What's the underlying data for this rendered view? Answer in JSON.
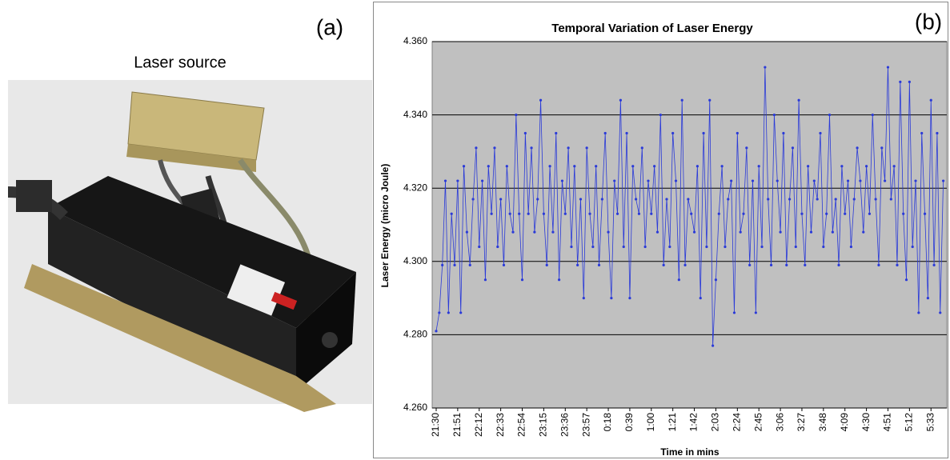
{
  "panel_a": {
    "label": "(a)",
    "caption": "Laser source"
  },
  "chart_data": {
    "type": "line",
    "panel_label": "(b)",
    "title": "Temporal Variation of Laser Energy",
    "x_label": "Time in mins",
    "y_label": "Laser Energy (micro Joule)",
    "categories": [
      "21:30",
      null,
      null,
      null,
      null,
      null,
      null,
      "21:51",
      null,
      null,
      null,
      null,
      null,
      null,
      "22:12",
      null,
      null,
      null,
      null,
      null,
      null,
      "22:33",
      null,
      null,
      null,
      null,
      null,
      null,
      "22:54",
      null,
      null,
      null,
      null,
      null,
      null,
      "23:15",
      null,
      null,
      null,
      null,
      null,
      null,
      "23:36",
      null,
      null,
      null,
      null,
      null,
      null,
      "23:57",
      null,
      null,
      null,
      null,
      null,
      null,
      "0:18",
      null,
      null,
      null,
      null,
      null,
      null,
      "0:39",
      null,
      null,
      null,
      null,
      null,
      null,
      "1:00",
      null,
      null,
      null,
      null,
      null,
      null,
      "1:21",
      null,
      null,
      null,
      null,
      null,
      null,
      "1:42",
      null,
      null,
      null,
      null,
      null,
      null,
      "2:03",
      null,
      null,
      null,
      null,
      null,
      null,
      "2:24",
      null,
      null,
      null,
      null,
      null,
      null,
      "2:45",
      null,
      null,
      null,
      null,
      null,
      null,
      "3:06",
      null,
      null,
      null,
      null,
      null,
      null,
      "3:27",
      null,
      null,
      null,
      null,
      null,
      null,
      "3:48",
      null,
      null,
      null,
      null,
      null,
      null,
      "4:09",
      null,
      null,
      null,
      null,
      null,
      null,
      "4:30",
      null,
      null,
      null,
      null,
      null,
      null,
      "4:51",
      null,
      null,
      null,
      null,
      null,
      null,
      "5:12",
      null,
      null,
      null,
      null,
      null,
      null,
      "5:33",
      null,
      null,
      null,
      null
    ],
    "series": [
      {
        "color": "#2a3ad8",
        "values": [
          4.281,
          4.286,
          4.299,
          4.322,
          4.286,
          4.313,
          4.299,
          4.322,
          4.286,
          4.326,
          4.308,
          4.299,
          4.317,
          4.331,
          4.304,
          4.322,
          4.295,
          4.326,
          4.313,
          4.331,
          4.304,
          4.317,
          4.299,
          4.326,
          4.313,
          4.308,
          4.34,
          4.313,
          4.295,
          4.335,
          4.313,
          4.331,
          4.308,
          4.317,
          4.344,
          4.313,
          4.299,
          4.326,
          4.308,
          4.335,
          4.295,
          4.322,
          4.313,
          4.331,
          4.304,
          4.326,
          4.299,
          4.317,
          4.29,
          4.331,
          4.313,
          4.304,
          4.326,
          4.299,
          4.317,
          4.335,
          4.308,
          4.29,
          4.322,
          4.313,
          4.344,
          4.304,
          4.335,
          4.29,
          4.326,
          4.317,
          4.313,
          4.331,
          4.304,
          4.322,
          4.313,
          4.326,
          4.308,
          4.34,
          4.299,
          4.317,
          4.304,
          4.335,
          4.322,
          4.295,
          4.344,
          4.299,
          4.317,
          4.313,
          4.308,
          4.326,
          4.29,
          4.335,
          4.304,
          4.344,
          4.277,
          4.295,
          4.313,
          4.326,
          4.304,
          4.317,
          4.322,
          4.286,
          4.335,
          4.308,
          4.313,
          4.331,
          4.299,
          4.322,
          4.286,
          4.326,
          4.304,
          4.353,
          4.317,
          4.299,
          4.34,
          4.322,
          4.308,
          4.335,
          4.299,
          4.317,
          4.331,
          4.304,
          4.344,
          4.313,
          4.299,
          4.326,
          4.308,
          4.322,
          4.317,
          4.335,
          4.304,
          4.313,
          4.34,
          4.308,
          4.317,
          4.299,
          4.326,
          4.313,
          4.322,
          4.304,
          4.317,
          4.331,
          4.322,
          4.308,
          4.326,
          4.313,
          4.34,
          4.317,
          4.299,
          4.331,
          4.322,
          4.353,
          4.317,
          4.326,
          4.299,
          4.349,
          4.313,
          4.295,
          4.349,
          4.304,
          4.322,
          4.286,
          4.335,
          4.313,
          4.29,
          4.344,
          4.299,
          4.335,
          4.286,
          4.322
        ]
      }
    ],
    "ylim": [
      4.26,
      4.36
    ],
    "yticks": [
      {
        "value": 4.26,
        "label": "4.260"
      },
      {
        "value": 4.28,
        "label": "4.280"
      },
      {
        "value": 4.3,
        "label": "4.300"
      },
      {
        "value": 4.32,
        "label": "4.320"
      },
      {
        "value": 4.34,
        "label": "4.340"
      },
      {
        "value": 4.36,
        "label": "4.360"
      }
    ],
    "grid": true,
    "plot_background": "#c0c0c0"
  }
}
